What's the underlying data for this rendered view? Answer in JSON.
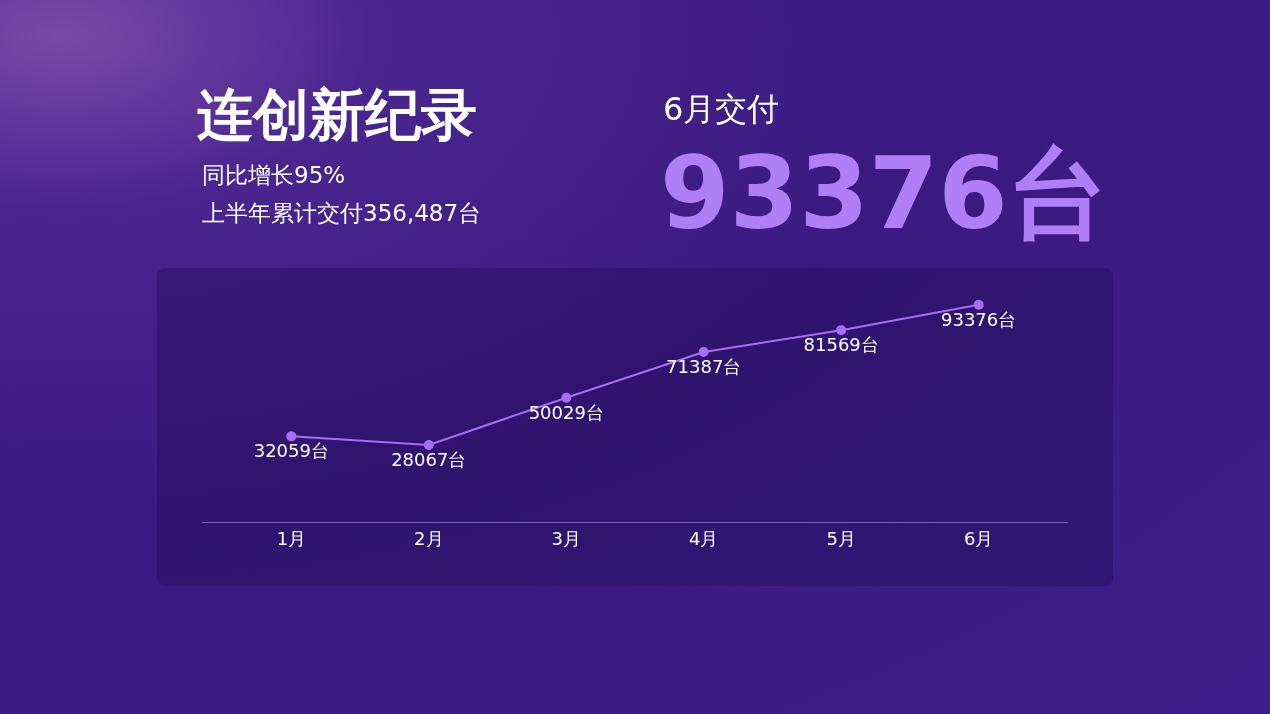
{
  "chart_data": {
    "type": "line",
    "title": "连创新纪录",
    "subtitle": "同比增长95%",
    "annotations": [
      "上半年累计交付356,487台",
      "6月交付",
      "93376台"
    ],
    "categories": [
      "1月",
      "2月",
      "3月",
      "4月",
      "5月",
      "6月"
    ],
    "series": [
      {
        "color": "#a86ef5",
        "values": [
          32059,
          28067,
          50029,
          71387,
          81569,
          93376
        ],
        "value_labels": [
          "32059台",
          "28067台",
          "50029台",
          "71387台",
          "81569台",
          "93376台"
        ]
      }
    ],
    "marker": "circle",
    "line_style": "solid",
    "grid": false,
    "legend": false
  }
}
